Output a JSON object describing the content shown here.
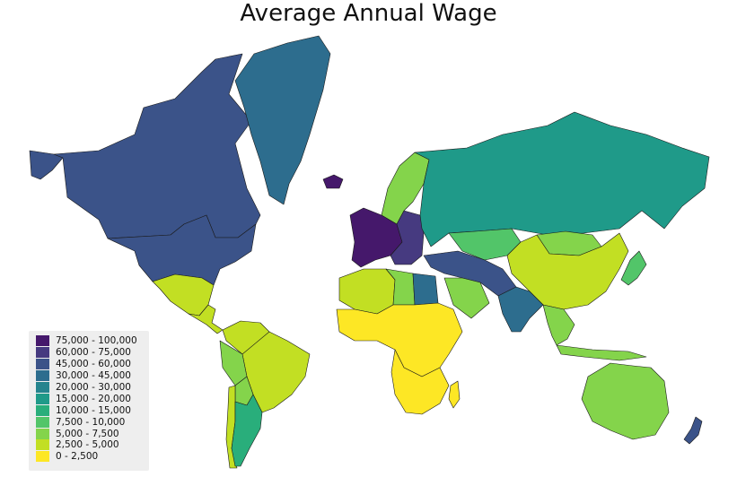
{
  "title": "Average Annual Wage",
  "legend": {
    "placement": "bottom-left",
    "items": [
      {
        "label": "75,000 - 100,000",
        "color": "#45186b"
      },
      {
        "label": "60,000 - 75,000",
        "color": "#463a80"
      },
      {
        "label": "45,000 - 60,000",
        "color": "#3b5389"
      },
      {
        "label": "30,000 - 45,000",
        "color": "#2d6d8e"
      },
      {
        "label": "20,000 - 30,000",
        "color": "#25848e"
      },
      {
        "label": "15,000 - 20,000",
        "color": "#1f9a89"
      },
      {
        "label": "10,000 - 15,000",
        "color": "#29ae7b"
      },
      {
        "label": "7,500 - 10,000",
        "color": "#52c569"
      },
      {
        "label": "5,000 - 7,500",
        "color": "#84d44b"
      },
      {
        "label": "2,500 - 5,000",
        "color": "#c2df23"
      },
      {
        "label": "0 - 2,500",
        "color": "#fde725"
      }
    ]
  },
  "regions": [
    {
      "name": "Canada",
      "bin": 2
    },
    {
      "name": "United States",
      "bin": 2
    },
    {
      "name": "Alaska",
      "bin": 2
    },
    {
      "name": "Greenland",
      "bin": 3
    },
    {
      "name": "Iceland",
      "bin": 0
    },
    {
      "name": "Mexico",
      "bin": 9
    },
    {
      "name": "Central America",
      "bin": 9
    },
    {
      "name": "Colombia",
      "bin": 9
    },
    {
      "name": "Venezuela",
      "bin": 9
    },
    {
      "name": "Brazil",
      "bin": 8
    },
    {
      "name": "Peru",
      "bin": 8
    },
    {
      "name": "Bolivia",
      "bin": 9
    },
    {
      "name": "Chile",
      "bin": 6
    },
    {
      "name": "Argentina",
      "bin": 8
    },
    {
      "name": "Scandinavia",
      "bin": 0
    },
    {
      "name": "Western Europe",
      "bin": 1
    },
    {
      "name": "Eastern Europe",
      "bin": 5
    },
    {
      "name": "Russia",
      "bin": 7
    },
    {
      "name": "Kazakhstan",
      "bin": 8
    },
    {
      "name": "Mongolia",
      "bin": 9
    },
    {
      "name": "China",
      "bin": 7
    },
    {
      "name": "Japan",
      "bin": 2
    },
    {
      "name": "Middle East",
      "bin": 8
    },
    {
      "name": "Saudi Arabia",
      "bin": 3
    },
    {
      "name": "India",
      "bin": 8
    },
    {
      "name": "Southeast Asia",
      "bin": 9
    },
    {
      "name": "North Africa",
      "bin": 8
    },
    {
      "name": "Libya",
      "bin": 3
    },
    {
      "name": "Egypt",
      "bin": 10
    },
    {
      "name": "Central Africa",
      "bin": 10
    },
    {
      "name": "Southern Africa",
      "bin": 8
    },
    {
      "name": "Australia",
      "bin": 2
    },
    {
      "name": "New Zealand",
      "bin": 2
    }
  ]
}
